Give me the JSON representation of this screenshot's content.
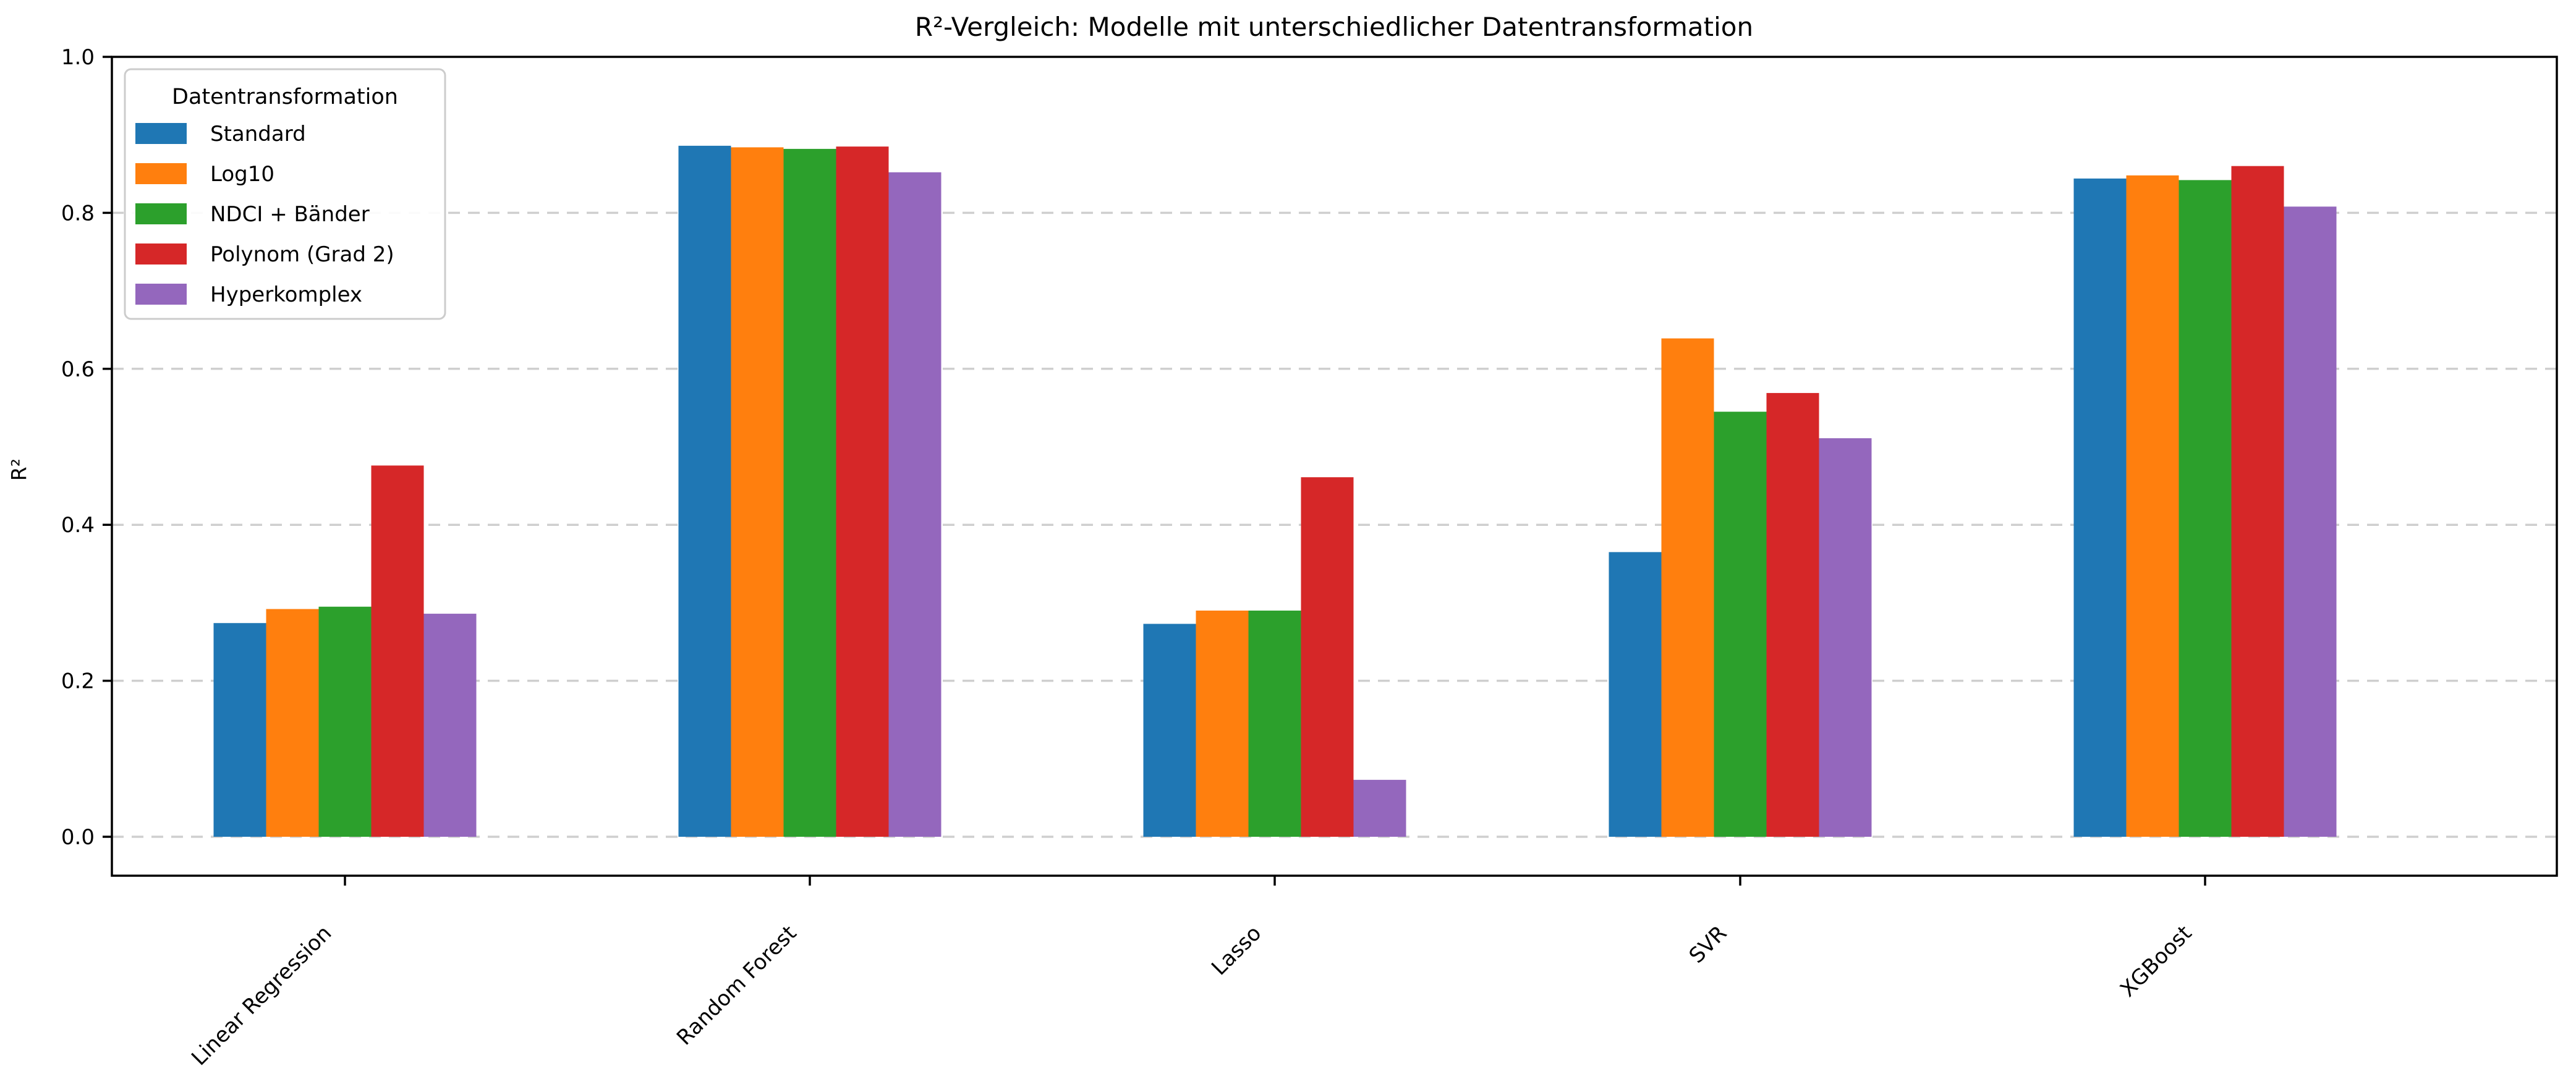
{
  "chart_data": {
    "type": "bar",
    "title": "R²-Vergleich: Modelle mit unterschiedlicher Datentransformation",
    "ylabel": "R²",
    "xlabel": "",
    "categories": [
      "Linear Regression",
      "Random Forest",
      "Lasso",
      "SVR",
      "XGBoost"
    ],
    "series": [
      {
        "name": "Standard",
        "color": "#1f77b4",
        "values": [
          0.274,
          0.886,
          0.273,
          0.365,
          0.844
        ]
      },
      {
        "name": "Log10",
        "color": "#ff7f0e",
        "values": [
          0.292,
          0.884,
          0.29,
          0.639,
          0.848
        ]
      },
      {
        "name": "NDCI + Bänder",
        "color": "#2ca02c",
        "values": [
          0.295,
          0.882,
          0.29,
          0.545,
          0.842
        ]
      },
      {
        "name": "Polynom (Grad 2)",
        "color": "#d62728",
        "values": [
          0.476,
          0.885,
          0.461,
          0.569,
          0.86
        ]
      },
      {
        "name": "Hyperkomplex",
        "color": "#9467bd",
        "values": [
          0.286,
          0.852,
          0.073,
          0.511,
          0.808
        ]
      }
    ],
    "ylim": [
      -0.05,
      1.0
    ],
    "yticks": [
      0.0,
      0.2,
      0.4,
      0.6,
      0.8,
      1.0
    ],
    "y_tick_labels": [
      "0.0",
      "0.2",
      "0.4",
      "0.6",
      "0.8",
      "1.0"
    ],
    "grid": true,
    "grid_style": "dashed",
    "grid_color": "#cfcfcf",
    "legend_title": "Datentransformation",
    "legend_position": "upper left",
    "bar_edge": "none",
    "background": "#ffffff"
  }
}
